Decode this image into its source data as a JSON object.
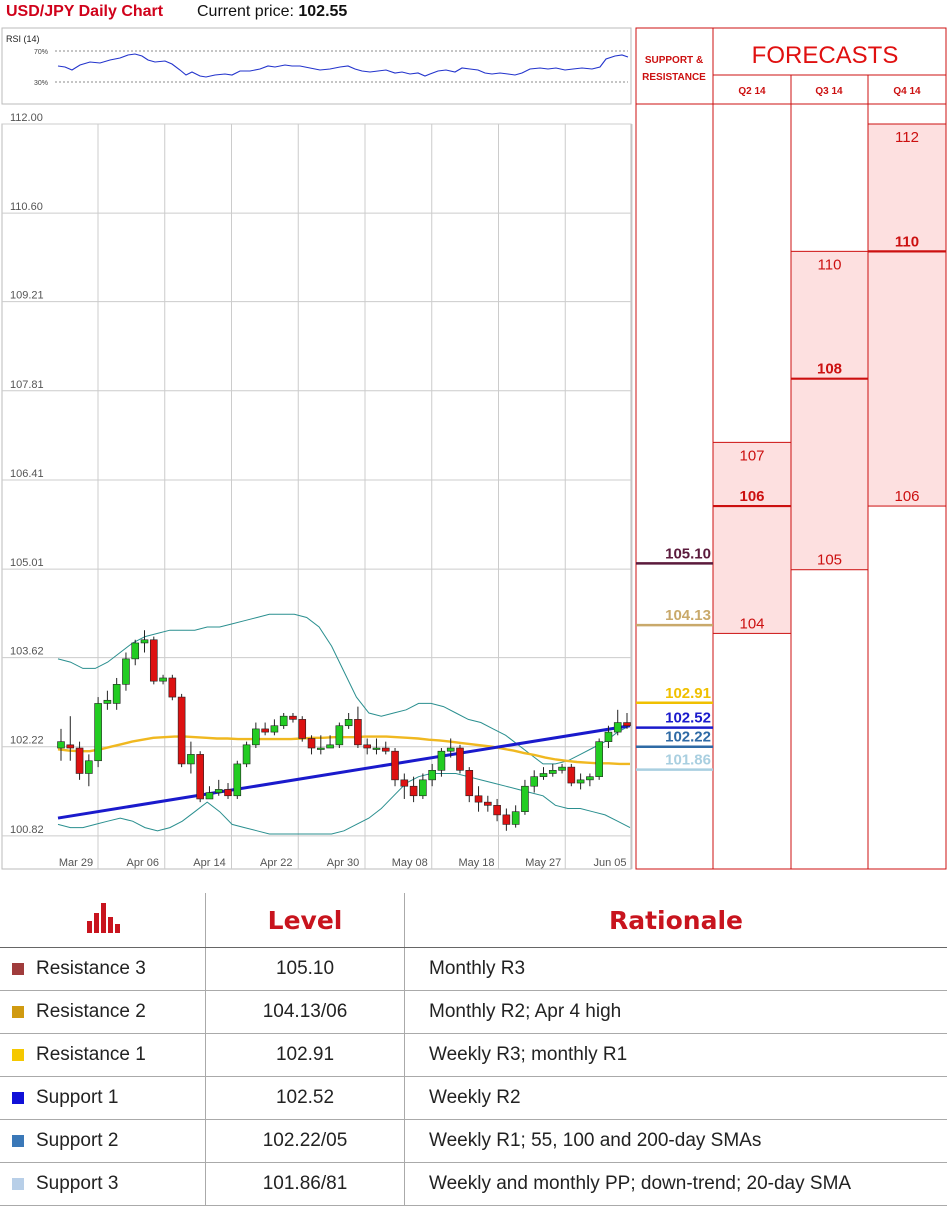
{
  "header": {
    "title": "USD/JPY Daily Chart",
    "price_label": "Current price:",
    "price_value": "102.55"
  },
  "rsi": {
    "label": "RSI (14)",
    "levels": [
      "70%",
      "30%"
    ]
  },
  "forecast_panel": {
    "sr_title_1": "SUPPORT &",
    "sr_title_2": "RESISTANCE",
    "title": "FORECASTS",
    "quarters": [
      "Q2 14",
      "Q3 14",
      "Q4 14"
    ]
  },
  "chart_data": {
    "type": "candlestick",
    "ylim": [
      100.3,
      112.0
    ],
    "yticks": [
      "112.00",
      "110.60",
      "109.21",
      "107.81",
      "106.41",
      "105.01",
      "103.62",
      "102.22",
      "100.82"
    ],
    "xlabels": [
      "Mar 29",
      "Apr 06",
      "Apr 14",
      "Apr 22",
      "Apr 30",
      "May 08",
      "May 18",
      "May 27",
      "Jun 05"
    ],
    "candles": [
      [
        102.2,
        102.3,
        102.5,
        102.0
      ],
      [
        102.25,
        102.2,
        102.7,
        102.0
      ],
      [
        102.2,
        101.8,
        102.3,
        101.7
      ],
      [
        101.8,
        102.0,
        102.1,
        101.6
      ],
      [
        102.0,
        102.9,
        103.0,
        101.9
      ],
      [
        102.9,
        102.95,
        103.1,
        102.8
      ],
      [
        102.9,
        103.2,
        103.3,
        102.8
      ],
      [
        103.2,
        103.6,
        103.7,
        103.1
      ],
      [
        103.6,
        103.85,
        103.9,
        103.5
      ],
      [
        103.85,
        103.9,
        104.05,
        103.7
      ],
      [
        103.9,
        103.25,
        103.95,
        103.2
      ],
      [
        103.25,
        103.3,
        103.35,
        103.2
      ],
      [
        103.3,
        103.0,
        103.35,
        102.95
      ],
      [
        103.0,
        101.95,
        103.05,
        101.9
      ],
      [
        101.95,
        102.1,
        102.3,
        101.8
      ],
      [
        102.1,
        101.4,
        102.15,
        101.35
      ],
      [
        101.4,
        101.5,
        101.6,
        101.4
      ],
      [
        101.5,
        101.55,
        101.7,
        101.45
      ],
      [
        101.55,
        101.45,
        101.65,
        101.4
      ],
      [
        101.45,
        101.95,
        102.0,
        101.4
      ],
      [
        101.95,
        102.25,
        102.3,
        101.9
      ],
      [
        102.25,
        102.5,
        102.6,
        102.2
      ],
      [
        102.5,
        102.45,
        102.6,
        102.4
      ],
      [
        102.45,
        102.55,
        102.65,
        102.4
      ],
      [
        102.55,
        102.7,
        102.75,
        102.5
      ],
      [
        102.7,
        102.65,
        102.75,
        102.6
      ],
      [
        102.65,
        102.35,
        102.7,
        102.3
      ],
      [
        102.35,
        102.2,
        102.4,
        102.1
      ],
      [
        102.2,
        102.2,
        102.4,
        102.1
      ],
      [
        102.2,
        102.25,
        102.4,
        102.2
      ],
      [
        102.25,
        102.55,
        102.6,
        102.2
      ],
      [
        102.55,
        102.65,
        102.75,
        102.5
      ],
      [
        102.65,
        102.25,
        102.85,
        102.2
      ],
      [
        102.25,
        102.2,
        102.35,
        102.1
      ],
      [
        102.2,
        102.2,
        102.35,
        102.1
      ],
      [
        102.2,
        102.15,
        102.3,
        102.1
      ],
      [
        102.15,
        101.7,
        102.2,
        101.6
      ],
      [
        101.7,
        101.6,
        101.8,
        101.4
      ],
      [
        101.6,
        101.45,
        101.75,
        101.35
      ],
      [
        101.45,
        101.7,
        101.8,
        101.4
      ],
      [
        101.7,
        101.85,
        101.95,
        101.6
      ],
      [
        101.85,
        102.15,
        102.2,
        101.75
      ],
      [
        102.15,
        102.2,
        102.35,
        102.05
      ],
      [
        102.2,
        101.85,
        102.25,
        101.8
      ],
      [
        101.85,
        101.45,
        101.9,
        101.35
      ],
      [
        101.45,
        101.35,
        101.6,
        101.2
      ],
      [
        101.35,
        101.3,
        101.45,
        101.2
      ],
      [
        101.3,
        101.15,
        101.4,
        101.05
      ],
      [
        101.15,
        101.0,
        101.25,
        100.9
      ],
      [
        101.0,
        101.2,
        101.3,
        100.95
      ],
      [
        101.2,
        101.6,
        101.7,
        101.15
      ],
      [
        101.6,
        101.75,
        101.85,
        101.5
      ],
      [
        101.75,
        101.8,
        101.9,
        101.7
      ],
      [
        101.8,
        101.85,
        101.95,
        101.75
      ],
      [
        101.85,
        101.9,
        101.95,
        101.8
      ],
      [
        101.9,
        101.65,
        101.95,
        101.6
      ],
      [
        101.65,
        101.7,
        101.8,
        101.55
      ],
      [
        101.7,
        101.75,
        101.8,
        101.6
      ],
      [
        101.75,
        102.3,
        102.35,
        101.7
      ],
      [
        102.3,
        102.45,
        102.55,
        102.2
      ],
      [
        102.45,
        102.6,
        102.8,
        102.4
      ],
      [
        102.6,
        102.55,
        102.75,
        102.5
      ]
    ],
    "sma": [
      102.18,
      102.16,
      102.15,
      102.15,
      102.18,
      102.22,
      102.26,
      102.3,
      102.33,
      102.36,
      102.37,
      102.38,
      102.38,
      102.37,
      102.36,
      102.35,
      102.35,
      102.34,
      102.34,
      102.34,
      102.34,
      102.34,
      102.34,
      102.35,
      102.36,
      102.36,
      102.37,
      102.37,
      102.37,
      102.38,
      102.38,
      102.38,
      102.37,
      102.36,
      102.35,
      102.33,
      102.32,
      102.3,
      102.28,
      102.26,
      102.24,
      102.22,
      102.19,
      102.16,
      102.12,
      102.09,
      102.05,
      102.02,
      102.0,
      101.98,
      101.97,
      101.96,
      101.96,
      101.95,
      101.95
    ],
    "trend": [
      101.1,
      102.55
    ],
    "bb_upper": [
      103.6,
      103.55,
      103.45,
      103.45,
      103.55,
      103.7,
      103.85,
      103.95,
      104.0,
      104.05,
      104.05,
      104.05,
      104.1,
      104.1,
      104.15,
      104.2,
      104.25,
      104.3,
      104.3,
      104.3,
      104.25,
      104.1,
      103.8,
      103.4,
      103.0,
      102.75,
      102.7,
      102.75,
      102.8,
      102.9,
      102.9,
      102.85,
      102.75,
      102.65,
      102.6,
      102.5,
      102.4,
      102.25,
      102.1,
      101.95,
      101.95,
      102.0,
      102.1,
      102.2,
      102.3,
      102.45,
      102.55
    ],
    "bb_lower": [
      101.0,
      100.95,
      100.95,
      101.0,
      101.05,
      101.1,
      101.05,
      100.95,
      100.9,
      100.95,
      101.05,
      101.2,
      101.35,
      101.2,
      101.0,
      100.95,
      100.9,
      100.85,
      100.85,
      100.85,
      100.85,
      100.85,
      100.85,
      100.9,
      101.0,
      101.1,
      101.25,
      101.45,
      101.65,
      101.75,
      101.8,
      101.8,
      101.8,
      101.75,
      101.7,
      101.65,
      101.6,
      101.55,
      101.5,
      101.45,
      101.3,
      101.25,
      101.25,
      101.2,
      101.15,
      101.05,
      100.95
    ]
  },
  "levels": [
    {
      "label": "105.10",
      "value": 105.1,
      "color": "#5b1a3c"
    },
    {
      "label": "104.13",
      "value": 104.13,
      "color": "#c9a96b"
    },
    {
      "label": "102.91",
      "value": 102.91,
      "color": "#f0c000"
    },
    {
      "label": "102.52",
      "value": 102.52,
      "color": "#1a1acc"
    },
    {
      "label": "102.22",
      "value": 102.22,
      "color": "#2e6aa5"
    },
    {
      "label": "101.86",
      "value": 101.86,
      "color": "#a9cfe0"
    }
  ],
  "forecasts": [
    {
      "quarter": "Q2 14",
      "high": "107",
      "mid": "106",
      "low": "104",
      "high_v": 107,
      "mid_v": 106,
      "low_v": 104
    },
    {
      "quarter": "Q3 14",
      "high": "110",
      "mid": "108",
      "low": "105",
      "high_v": 110,
      "mid_v": 108,
      "low_v": 105
    },
    {
      "quarter": "Q4 14",
      "high": "112",
      "mid": "110",
      "low": "106",
      "high_v": 112,
      "mid_v": 110,
      "low_v": 106
    }
  ],
  "table": {
    "headers": [
      "",
      "Level",
      "Rationale"
    ],
    "rows": [
      {
        "name": "Resistance 3",
        "color": "#a03c3c",
        "level": "105.10",
        "rationale": "Monthly R3"
      },
      {
        "name": "Resistance 2",
        "color": "#d09a10",
        "level": "104.13/06",
        "rationale": "Monthly R2; Apr 4 high"
      },
      {
        "name": "Resistance 1",
        "color": "#f5c800",
        "level": "102.91",
        "rationale": "Weekly R3; monthly R1"
      },
      {
        "name": "Support 1",
        "color": "#1010d8",
        "level": "102.52",
        "rationale": "Weekly R2"
      },
      {
        "name": "Support 2",
        "color": "#3a78b8",
        "level": "102.22/05",
        "rationale": "Weekly R1; 55, 100 and 200-day SMAs"
      },
      {
        "name": "Support 3",
        "color": "#b8cfe8",
        "level": "101.86/81",
        "rationale": "Weekly and monthly PP; down-trend; 20-day SMA"
      }
    ]
  }
}
